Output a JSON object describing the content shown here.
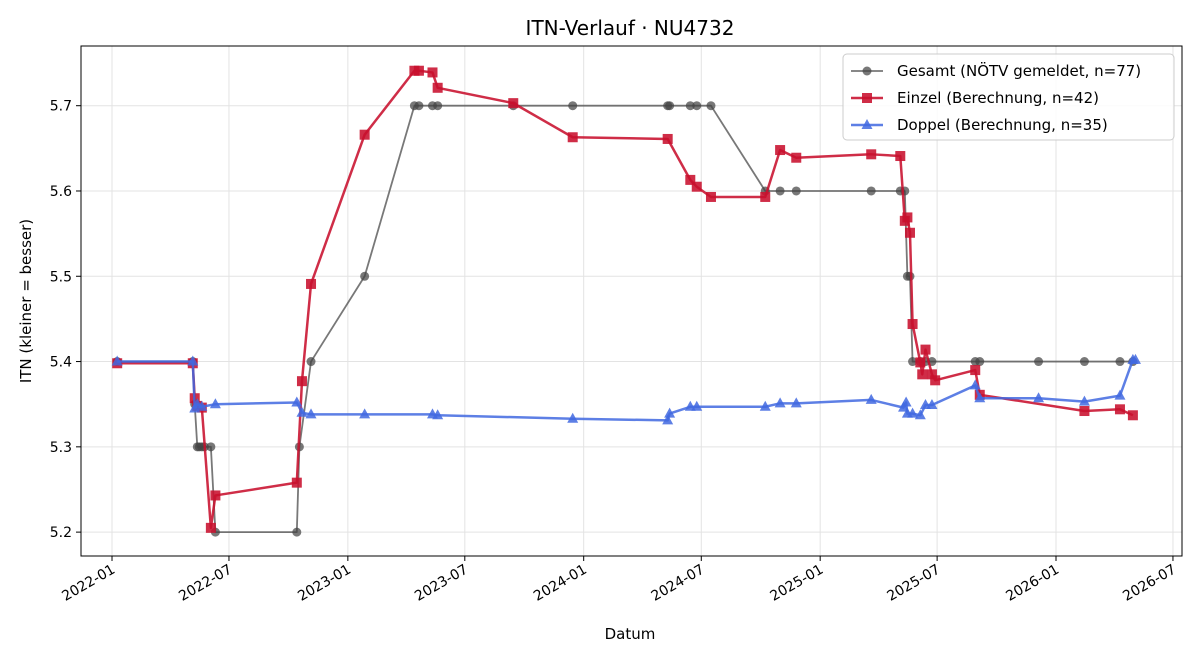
{
  "chart_data": {
    "type": "line",
    "title": "ITN-Verlauf · NU4732",
    "xlabel": "Datum",
    "ylabel": "ITN  (kleiner = besser)",
    "xlim": [
      "2021-11-14",
      "2026-07-15"
    ],
    "ylim": [
      5.172,
      5.77
    ],
    "grid": true,
    "legend_position": "top-right",
    "x_ticks": [
      "2022-01-01",
      "2022-07-01",
      "2023-01-01",
      "2023-07-01",
      "2024-01-01",
      "2024-07-01",
      "2025-01-01",
      "2025-07-01",
      "2026-01-01",
      "2026-07-01"
    ],
    "x_tick_labels": [
      "2022-01",
      "2022-07",
      "2023-01",
      "2023-07",
      "2024-01",
      "2024-07",
      "2025-01",
      "2025-07",
      "2026-01",
      "2026-07"
    ],
    "y_ticks": [
      5.2,
      5.3,
      5.4,
      5.5,
      5.6,
      5.7
    ],
    "y_tick_labels": [
      "5.2",
      "5.3",
      "5.4",
      "5.5",
      "5.6",
      "5.7"
    ],
    "series": [
      {
        "name": "Gesamt (NÖTV gemeldet, n=77)",
        "color": "#444444",
        "marker": "circle",
        "x": [
          "2022-01-09",
          "2022-05-06",
          "2022-05-09",
          "2022-05-13",
          "2022-05-16",
          "2022-05-20",
          "2022-05-24",
          "2022-06-03",
          "2022-06-10",
          "2022-10-14",
          "2022-10-18",
          "2022-11-05",
          "2023-01-27",
          "2023-04-14",
          "2023-04-21",
          "2023-05-12",
          "2023-05-20",
          "2023-09-14",
          "2023-12-15",
          "2024-05-10",
          "2024-05-13",
          "2024-06-14",
          "2024-06-24",
          "2024-07-16",
          "2024-10-08",
          "2024-10-31",
          "2024-11-25",
          "2025-03-21",
          "2025-05-05",
          "2025-05-12",
          "2025-05-16",
          "2025-05-20",
          "2025-05-24",
          "2025-06-05",
          "2025-06-13",
          "2025-06-23",
          "2025-08-29",
          "2025-09-05",
          "2025-12-05",
          "2026-02-14",
          "2026-04-10",
          "2026-04-30"
        ],
        "y": [
          5.4,
          5.4,
          5.35,
          5.3,
          5.3,
          5.3,
          5.3,
          5.3,
          5.2,
          5.2,
          5.3,
          5.4,
          5.5,
          5.7,
          5.7,
          5.7,
          5.7,
          5.7,
          5.7,
          5.7,
          5.7,
          5.7,
          5.7,
          5.7,
          5.6,
          5.6,
          5.6,
          5.6,
          5.6,
          5.6,
          5.5,
          5.5,
          5.4,
          5.4,
          5.4,
          5.4,
          5.4,
          5.4,
          5.4,
          5.4,
          5.4,
          5.4
        ]
      },
      {
        "name": "Einzel (Berechnung, n=42)",
        "color": "#c8102e",
        "marker": "square",
        "x": [
          "2022-01-09",
          "2022-05-06",
          "2022-05-09",
          "2022-05-13",
          "2022-05-20",
          "2022-06-03",
          "2022-06-10",
          "2022-10-14",
          "2022-10-22",
          "2022-11-05",
          "2023-01-27",
          "2023-04-14",
          "2023-04-21",
          "2023-05-12",
          "2023-05-20",
          "2023-09-14",
          "2023-12-15",
          "2024-05-10",
          "2024-06-14",
          "2024-06-24",
          "2024-07-16",
          "2024-10-08",
          "2024-10-31",
          "2024-11-25",
          "2025-03-21",
          "2025-05-05",
          "2025-05-12",
          "2025-05-16",
          "2025-05-20",
          "2025-05-24",
          "2025-06-05",
          "2025-06-08",
          "2025-06-13",
          "2025-06-23",
          "2025-06-28",
          "2025-08-29",
          "2025-09-05",
          "2026-02-14",
          "2026-04-10",
          "2026-04-30"
        ],
        "y": [
          5.398,
          5.398,
          5.357,
          5.348,
          5.346,
          5.205,
          5.243,
          5.258,
          5.377,
          5.491,
          5.666,
          5.741,
          5.741,
          5.739,
          5.721,
          5.703,
          5.663,
          5.661,
          5.613,
          5.605,
          5.593,
          5.593,
          5.648,
          5.639,
          5.643,
          5.641,
          5.565,
          5.569,
          5.551,
          5.444,
          5.399,
          5.385,
          5.414,
          5.385,
          5.378,
          5.39,
          5.361,
          5.342,
          5.344,
          5.337
        ]
      },
      {
        "name": "Doppel (Berechnung, n=35)",
        "color": "#4169e1",
        "marker": "triangle",
        "x": [
          "2022-01-09",
          "2022-05-06",
          "2022-05-09",
          "2022-05-13",
          "2022-05-20",
          "2022-06-10",
          "2022-10-14",
          "2022-10-22",
          "2022-11-05",
          "2023-01-27",
          "2023-05-12",
          "2023-05-20",
          "2023-12-15",
          "2024-05-10",
          "2024-05-13",
          "2024-06-14",
          "2024-06-24",
          "2024-10-08",
          "2024-10-31",
          "2024-11-25",
          "2025-03-21",
          "2025-05-10",
          "2025-05-14",
          "2025-05-16",
          "2025-05-24",
          "2025-06-05",
          "2025-06-13",
          "2025-06-23",
          "2025-08-29",
          "2025-09-05",
          "2025-12-05",
          "2026-02-14",
          "2026-04-10",
          "2026-04-30",
          "2026-05-04"
        ],
        "y": [
          5.4,
          5.4,
          5.345,
          5.35,
          5.347,
          5.35,
          5.352,
          5.34,
          5.338,
          5.338,
          5.338,
          5.337,
          5.333,
          5.331,
          5.339,
          5.347,
          5.347,
          5.347,
          5.351,
          5.351,
          5.355,
          5.346,
          5.352,
          5.339,
          5.339,
          5.337,
          5.349,
          5.349,
          5.372,
          5.357,
          5.357,
          5.353,
          5.36,
          5.402,
          5.402
        ]
      }
    ]
  }
}
